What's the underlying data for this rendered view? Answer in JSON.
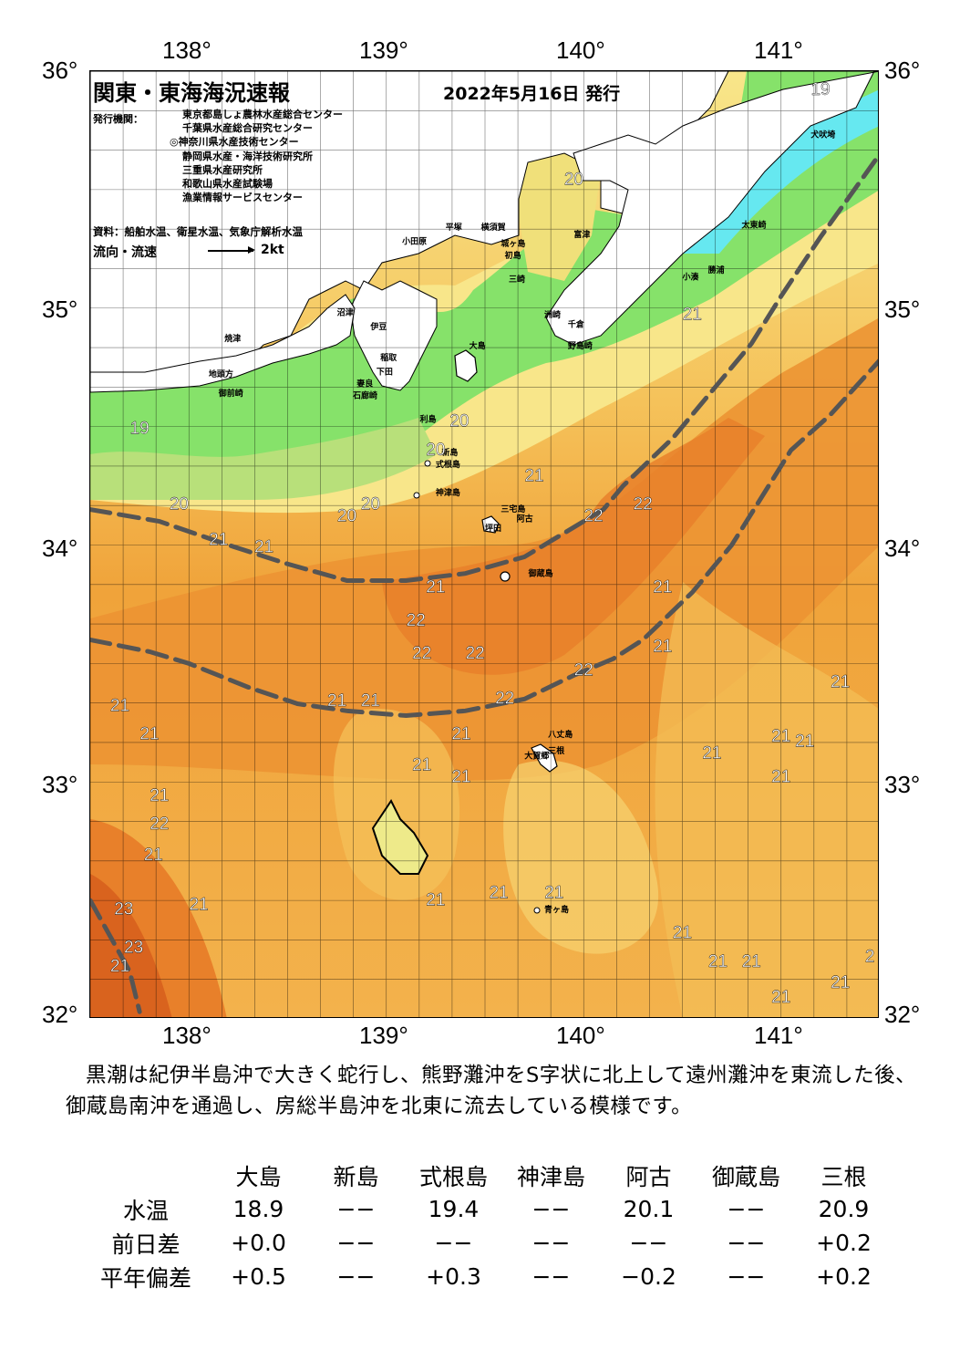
{
  "title": "関東・東海海況速報",
  "date": "2022年5月16日 発行",
  "organizations_label": "発行機関：",
  "organizations": [
    "東京都島しょ農林水産総合センター",
    "千葉県水産総合研究センター",
    "◎神奈川県水産技術センター",
    "静岡県水産・海洋技術研究所",
    "三重県水産研究所",
    "和歌山県水産試験場",
    "漁業情報サービスセンター"
  ],
  "source": "資料：船舶水温、衛星水温、気象庁解析水温",
  "legend": {
    "label": "流向・流速",
    "value": "2kt"
  },
  "axes": {
    "lon_top": [
      "138°",
      "139°",
      "140°",
      "141°"
    ],
    "lon_bottom": [
      "138°",
      "139°",
      "140°",
      "141°"
    ],
    "lat_left": [
      "36°",
      "35°",
      "34°",
      "33°",
      "32°"
    ],
    "lat_right": [
      "36°",
      "35°",
      "34°",
      "33°",
      "32°"
    ]
  },
  "map": {
    "lon_range": [
      137.5,
      141.5
    ],
    "lat_range": [
      32.0,
      36.0
    ],
    "colors": {
      "cold": "#66e8f0",
      "green": "#86e26a",
      "lightgreen": "#b8e07a",
      "yellow": "#f8e68a",
      "lightorange": "#f5c25a",
      "orange": "#f0a33a",
      "deeporange": "#e8802a",
      "red": "#d9631e",
      "land": "#ffffff",
      "kuroshio_axis": "#555555"
    },
    "place_names": [
      {
        "text": "犬吠埼",
        "lon": 141.15,
        "lat": 35.72
      },
      {
        "text": "太東崎",
        "lon": 140.8,
        "lat": 35.34
      },
      {
        "text": "勝浦",
        "lon": 140.63,
        "lat": 35.15
      },
      {
        "text": "小湊",
        "lon": 140.5,
        "lat": 35.12
      },
      {
        "text": "富津",
        "lon": 139.95,
        "lat": 35.3
      },
      {
        "text": "平塚",
        "lon": 139.3,
        "lat": 35.33
      },
      {
        "text": "横須賀",
        "lon": 139.48,
        "lat": 35.33
      },
      {
        "text": "小田原",
        "lon": 139.08,
        "lat": 35.27
      },
      {
        "text": "城ヶ島",
        "lon": 139.58,
        "lat": 35.26
      },
      {
        "text": "初島",
        "lon": 139.6,
        "lat": 35.21
      },
      {
        "text": "三崎",
        "lon": 139.62,
        "lat": 35.11
      },
      {
        "text": "洲崎",
        "lon": 139.8,
        "lat": 34.96
      },
      {
        "text": "千倉",
        "lon": 139.92,
        "lat": 34.92
      },
      {
        "text": "野島崎",
        "lon": 139.92,
        "lat": 34.83
      },
      {
        "text": "沼津",
        "lon": 138.75,
        "lat": 34.97
      },
      {
        "text": "伊豆",
        "lon": 138.92,
        "lat": 34.91
      },
      {
        "text": "焼津",
        "lon": 138.18,
        "lat": 34.86
      },
      {
        "text": "稲取",
        "lon": 138.97,
        "lat": 34.78
      },
      {
        "text": "下田",
        "lon": 138.95,
        "lat": 34.72
      },
      {
        "text": "大島",
        "lon": 139.42,
        "lat": 34.83
      },
      {
        "text": "御前崎",
        "lon": 138.15,
        "lat": 34.63
      },
      {
        "text": "地頭方",
        "lon": 138.1,
        "lat": 34.71
      },
      {
        "text": "石廊崎",
        "lon": 138.83,
        "lat": 34.62
      },
      {
        "text": "妻良",
        "lon": 138.85,
        "lat": 34.67
      },
      {
        "text": "利島",
        "lon": 139.17,
        "lat": 34.52
      },
      {
        "text": "新島",
        "lon": 139.28,
        "lat": 34.38
      },
      {
        "text": "式根島",
        "lon": 139.25,
        "lat": 34.33
      },
      {
        "text": "神津島",
        "lon": 139.25,
        "lat": 34.21
      },
      {
        "text": "三宅島",
        "lon": 139.58,
        "lat": 34.14
      },
      {
        "text": "坪田",
        "lon": 139.5,
        "lat": 34.06
      },
      {
        "text": "阿古",
        "lon": 139.66,
        "lat": 34.1
      },
      {
        "text": "御蔵島",
        "lon": 139.72,
        "lat": 33.87
      },
      {
        "text": "八丈島",
        "lon": 139.82,
        "lat": 33.19
      },
      {
        "text": "三根",
        "lon": 139.82,
        "lat": 33.12
      },
      {
        "text": "大賀郷",
        "lon": 139.7,
        "lat": 33.1
      },
      {
        "text": "青ヶ島",
        "lon": 139.8,
        "lat": 32.45
      }
    ],
    "temperature_labels": [
      {
        "text": "19",
        "lon": 141.2,
        "lat": 35.9
      },
      {
        "text": "20",
        "lon": 139.95,
        "lat": 35.52
      },
      {
        "text": "21",
        "lon": 140.55,
        "lat": 34.95
      },
      {
        "text": "19",
        "lon": 137.75,
        "lat": 34.47
      },
      {
        "text": "20",
        "lon": 139.37,
        "lat": 34.5
      },
      {
        "text": "20",
        "lon": 139.25,
        "lat": 34.38
      },
      {
        "text": "21",
        "lon": 139.75,
        "lat": 34.27
      },
      {
        "text": "22",
        "lon": 140.05,
        "lat": 34.1
      },
      {
        "text": "22",
        "lon": 140.3,
        "lat": 34.15
      },
      {
        "text": "20",
        "lon": 137.95,
        "lat": 34.15
      },
      {
        "text": "20",
        "lon": 138.8,
        "lat": 34.1
      },
      {
        "text": "20",
        "lon": 138.92,
        "lat": 34.15
      },
      {
        "text": "21",
        "lon": 138.15,
        "lat": 34.0
      },
      {
        "text": "21",
        "lon": 138.38,
        "lat": 33.97
      },
      {
        "text": "21",
        "lon": 139.25,
        "lat": 33.8
      },
      {
        "text": "22",
        "lon": 139.15,
        "lat": 33.66
      },
      {
        "text": "21",
        "lon": 140.4,
        "lat": 33.8
      },
      {
        "text": "22",
        "lon": 139.18,
        "lat": 33.52
      },
      {
        "text": "22",
        "lon": 139.45,
        "lat": 33.52
      },
      {
        "text": "22",
        "lon": 140.0,
        "lat": 33.45
      },
      {
        "text": "21",
        "lon": 140.4,
        "lat": 33.55
      },
      {
        "text": "21",
        "lon": 141.3,
        "lat": 33.4
      },
      {
        "text": "21",
        "lon": 137.65,
        "lat": 33.3
      },
      {
        "text": "21",
        "lon": 138.75,
        "lat": 33.32
      },
      {
        "text": "21",
        "lon": 138.92,
        "lat": 33.32
      },
      {
        "text": "22",
        "lon": 139.6,
        "lat": 33.33
      },
      {
        "text": "21",
        "lon": 137.8,
        "lat": 33.18
      },
      {
        "text": "21",
        "lon": 139.38,
        "lat": 33.18
      },
      {
        "text": "21",
        "lon": 140.65,
        "lat": 33.1
      },
      {
        "text": "21",
        "lon": 141.0,
        "lat": 33.17
      },
      {
        "text": "21",
        "lon": 141.12,
        "lat": 33.15
      },
      {
        "text": "21",
        "lon": 139.18,
        "lat": 33.05
      },
      {
        "text": "21",
        "lon": 139.38,
        "lat": 33.0
      },
      {
        "text": "21",
        "lon": 141.0,
        "lat": 33.0
      },
      {
        "text": "21",
        "lon": 137.85,
        "lat": 32.92
      },
      {
        "text": "22",
        "lon": 137.85,
        "lat": 32.8
      },
      {
        "text": "21",
        "lon": 137.82,
        "lat": 32.67
      },
      {
        "text": "21",
        "lon": 138.05,
        "lat": 32.46
      },
      {
        "text": "21",
        "lon": 139.25,
        "lat": 32.48
      },
      {
        "text": "21",
        "lon": 139.57,
        "lat": 32.51
      },
      {
        "text": "21",
        "lon": 139.85,
        "lat": 32.51
      },
      {
        "text": "23",
        "lon": 137.67,
        "lat": 32.44
      },
      {
        "text": "23",
        "lon": 137.72,
        "lat": 32.28
      },
      {
        "text": "21",
        "lon": 140.5,
        "lat": 32.34
      },
      {
        "text": "21",
        "lon": 140.68,
        "lat": 32.22
      },
      {
        "text": "21",
        "lon": 140.85,
        "lat": 32.22
      },
      {
        "text": "2",
        "lon": 141.45,
        "lat": 32.24
      },
      {
        "text": "21",
        "lon": 141.3,
        "lat": 32.13
      },
      {
        "text": "21",
        "lon": 137.65,
        "lat": 32.2
      },
      {
        "text": "21",
        "lon": 141.0,
        "lat": 32.07
      }
    ],
    "kuroshio_lines": [
      [
        [
          137.5,
          34.15
        ],
        [
          137.85,
          34.1
        ],
        [
          138.2,
          34.0
        ],
        [
          138.5,
          33.92
        ],
        [
          138.8,
          33.85
        ],
        [
          139.1,
          33.85
        ],
        [
          139.4,
          33.88
        ],
        [
          139.7,
          33.95
        ],
        [
          139.9,
          34.05
        ],
        [
          140.1,
          34.15
        ],
        [
          140.2,
          34.25
        ],
        [
          140.45,
          34.45
        ],
        [
          140.7,
          34.7
        ],
        [
          140.85,
          34.85
        ],
        [
          141.0,
          35.05
        ],
        [
          141.2,
          35.3
        ],
        [
          141.5,
          35.65
        ]
      ],
      [
        [
          137.5,
          33.6
        ],
        [
          137.8,
          33.55
        ],
        [
          138.0,
          33.5
        ],
        [
          138.3,
          33.4
        ],
        [
          138.55,
          33.33
        ],
        [
          138.8,
          33.3
        ],
        [
          139.1,
          33.28
        ],
        [
          139.4,
          33.3
        ],
        [
          139.7,
          33.35
        ],
        [
          139.95,
          33.45
        ],
        [
          140.15,
          33.52
        ],
        [
          140.3,
          33.6
        ],
        [
          140.55,
          33.8
        ],
        [
          140.75,
          34.0
        ],
        [
          140.9,
          34.2
        ],
        [
          141.05,
          34.4
        ],
        [
          141.25,
          34.55
        ],
        [
          141.5,
          34.78
        ]
      ],
      [
        [
          137.5,
          32.5
        ],
        [
          137.6,
          32.35
        ],
        [
          137.7,
          32.2
        ],
        [
          137.75,
          32.03
        ]
      ]
    ]
  },
  "summary": "黒潮は紀伊半島沖で大きく蛇行し、熊野灘沖をS字状に北上して遠州灘沖を東流した後、御蔵島南沖を通過し、房総半島沖を北東に流去している模様です。",
  "stats": {
    "columns": [
      "大島",
      "新島",
      "式根島",
      "神津島",
      "阿古",
      "御蔵島",
      "三根"
    ],
    "rows": [
      {
        "label": "水温",
        "values": [
          "18.9",
          "−−",
          "19.4",
          "−−",
          "20.1",
          "−−",
          "20.9"
        ]
      },
      {
        "label": "前日差",
        "values": [
          "+0.0",
          "−−",
          "−−",
          "−−",
          "−−",
          "−−",
          "+0.2"
        ]
      },
      {
        "label": "平年偏差",
        "values": [
          "+0.5",
          "−−",
          "+0.3",
          "−−",
          "−0.2",
          "−−",
          "+0.2"
        ]
      }
    ]
  }
}
